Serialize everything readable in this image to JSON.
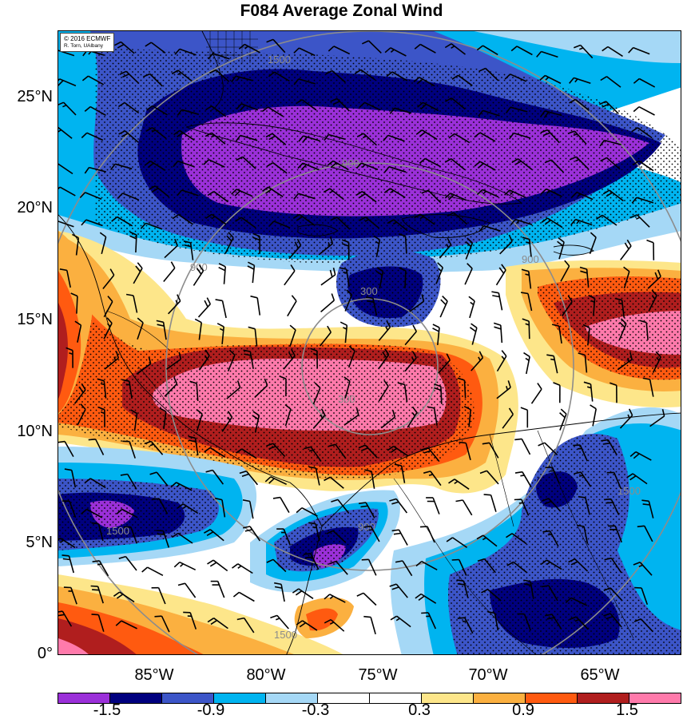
{
  "title": "F084 Average Zonal Wind",
  "credit": {
    "line1": "© 2016 ECMWF",
    "line2": "R. Torn, UAlbany"
  },
  "lat_labels": [
    "25°N",
    "20°N",
    "15°N",
    "10°N",
    "5°N",
    "0°"
  ],
  "lon_labels": [
    "85°W",
    "80°W",
    "75°W",
    "70°W",
    "65°W"
  ],
  "colorbar": {
    "colors": [
      "#9b30d9",
      "#00007f",
      "#3c55c8",
      "#00b4f0",
      "#a5d8f6",
      "#ffffff",
      "#ffffff",
      "#fde68a",
      "#fbb040",
      "#ff5a10",
      "#b01e1e",
      "#ff7aab"
    ],
    "labels": [
      "-1.5",
      "-0.9",
      "-0.3",
      "0.3",
      "0.9",
      "1.5"
    ]
  },
  "range_ring_labels": [
    "300",
    "900",
    "1500"
  ],
  "map": {
    "extent": {
      "lon_min": -89.5,
      "lon_max": -61.5,
      "lat_min": 0,
      "lat_max": 28
    },
    "variable": "Average zonal wind",
    "forecast_hour": "F084",
    "color_for_land_lines": "#000000",
    "ring_color": "#8c8c8c"
  }
}
